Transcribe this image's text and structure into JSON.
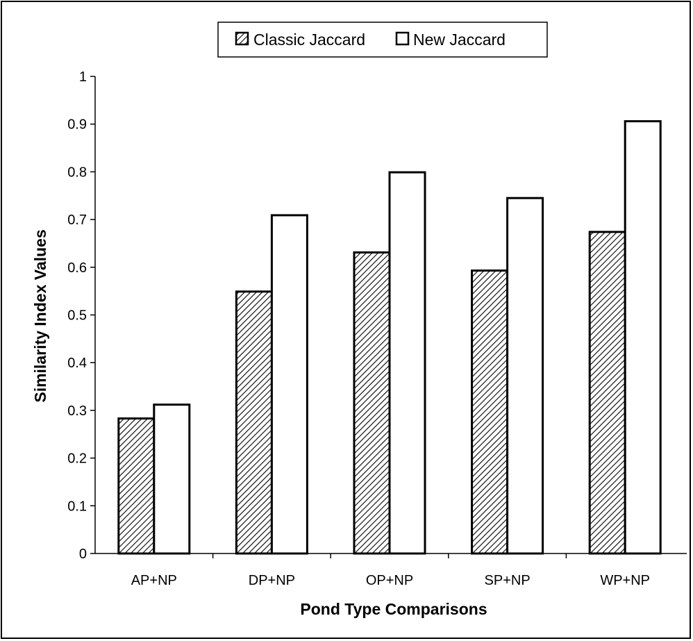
{
  "chart_data": {
    "type": "bar",
    "title": "",
    "xlabel": "Pond Type Comparisons",
    "ylabel": "Similarity Index Values",
    "categories": [
      "AP+NP",
      "DP+NP",
      "OP+NP",
      "SP+NP",
      "WP+NP"
    ],
    "series": [
      {
        "name": "Classic Jaccard",
        "values": [
          0.283,
          0.549,
          0.631,
          0.593,
          0.674
        ],
        "fill": "hatched"
      },
      {
        "name": "New Jaccard",
        "values": [
          0.312,
          0.709,
          0.799,
          0.745,
          0.906
        ],
        "fill": "white"
      }
    ],
    "ylim": [
      0,
      1
    ],
    "yticks": [
      "0",
      "0.1",
      "0.2",
      "0.3",
      "0.4",
      "0.5",
      "0.6",
      "0.7",
      "0.8",
      "0.9",
      "1"
    ],
    "grid": false,
    "legend_position": "top-center",
    "colors": {
      "bar_stroke": "#000000",
      "hatch": "#000000",
      "background": "#ffffff"
    }
  }
}
